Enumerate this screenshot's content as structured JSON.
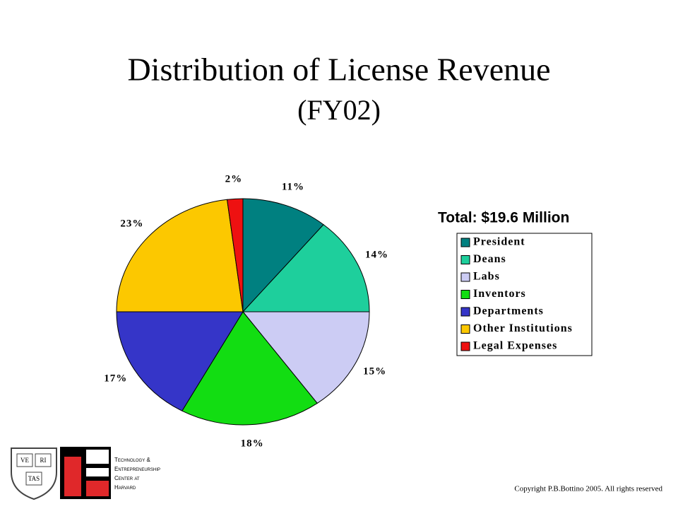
{
  "chart_data": {
    "type": "pie",
    "title": "Distribution of License Revenue",
    "subtitle": "(FY02)",
    "legend_title": "Total: $19.6 Million",
    "categories": [
      "President",
      "Deans",
      "Labs",
      "Inventors",
      "Departments",
      "Other Institutions",
      "Legal Expenses"
    ],
    "values": [
      11,
      14,
      15,
      18,
      17,
      23,
      2
    ],
    "value_labels": [
      "11%",
      "14%",
      "15%",
      "18%",
      "17%",
      "23%",
      "2%"
    ],
    "colors": [
      "#008080",
      "#1ecf9c",
      "#ccccf4",
      "#12dd12",
      "#3535c8",
      "#fcc800",
      "#ee1111"
    ],
    "legend_position": "right"
  },
  "footer": {
    "copyright": "Copyright P.B.Bottino 2005. All rights reserved",
    "shield": [
      "VE",
      "RI",
      "TAS"
    ],
    "logo_lines": [
      "Technology &",
      "Entrepreneurship",
      "Center at",
      "Harvard"
    ]
  }
}
